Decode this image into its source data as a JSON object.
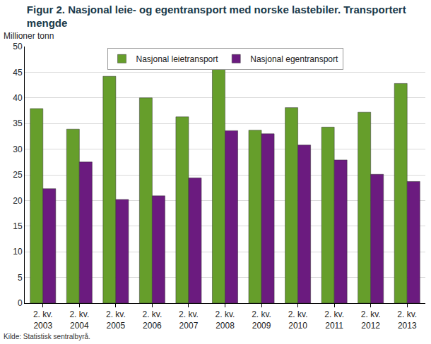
{
  "chart_data": {
    "type": "bar",
    "title": "Figur 2. Nasjonal leie- og egentransport med norske lastebiler. Transportert mengde",
    "ylabel": "Millioner tonn",
    "source": "Kilde: Statistisk sentralbyrå.",
    "categories": [
      "2. kv. 2003",
      "2. kv. 2004",
      "2. kv. 2005",
      "2. kv. 2006",
      "2. kv. 2007",
      "2. kv. 2008",
      "2. kv. 2009",
      "2. kv. 2010",
      "2. kv. 2011",
      "2. kv. 2012",
      "2. kv. 2013"
    ],
    "series": [
      {
        "name": "Nasjonal leietransport",
        "color": "#669e2b",
        "values": [
          37.9,
          33.9,
          44.2,
          40.0,
          36.3,
          45.6,
          33.7,
          38.1,
          34.3,
          37.2,
          42.8
        ]
      },
      {
        "name": "Nasjonal egentransport",
        "color": "#6b1b7f",
        "values": [
          22.3,
          27.5,
          20.2,
          20.9,
          24.4,
          33.6,
          33.0,
          30.8,
          27.9,
          25.1,
          23.7
        ]
      }
    ],
    "ylim": [
      0,
      50
    ],
    "yticks": [
      0,
      5,
      10,
      15,
      20,
      25,
      30,
      35,
      40,
      45,
      50
    ],
    "grid": true,
    "legend": "top"
  }
}
